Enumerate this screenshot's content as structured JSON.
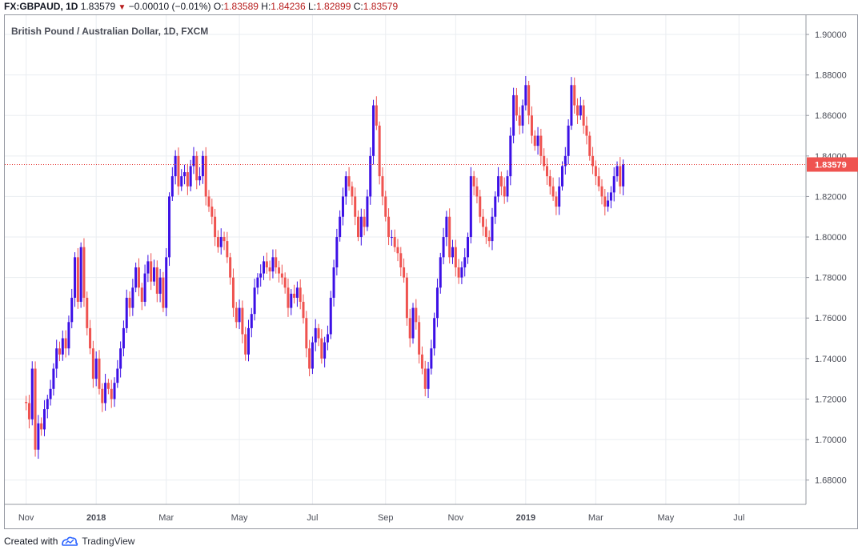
{
  "header": {
    "symbol": "FX:GBPAUD, 1D",
    "last": "1.83579",
    "change": "−0.00010 (−0.01%)",
    "o_label": "O:",
    "o_value": "1.83589",
    "h_label": "H:",
    "h_value": "1.84236",
    "l_label": "L:",
    "l_value": "1.82899",
    "c_label": "C:",
    "c_value": "1.83579"
  },
  "footer": {
    "created_with": "Created with",
    "brand": "TradingView"
  },
  "colors": {
    "up": "#3c10e6",
    "down": "#ef5350",
    "price_line": "#e53935",
    "price_label_bg": "#ef5350",
    "grid": "#eaedf1",
    "axis_text": "#4a4d57",
    "brand": "#2962ff"
  },
  "chart_data": {
    "type": "candlestick",
    "title": "British Pound / Australian Dollar, 1D, FXCM",
    "symbol": "FX:GBPAUD",
    "interval": "1D",
    "last_price": 1.83579,
    "last_price_label": "1.83579",
    "ylim": [
      1.668,
      1.9095
    ],
    "x_range_days": [
      -7,
      256
    ],
    "y_ticks": [
      1.68,
      1.7,
      1.72,
      1.74,
      1.76,
      1.78,
      1.8,
      1.82,
      1.84,
      1.86,
      1.88,
      1.9
    ],
    "y_tick_labels": [
      "1.68000",
      "1.70000",
      "1.72000",
      "1.74000",
      "1.76000",
      "1.78000",
      "1.80000",
      "1.82000",
      "1.84000",
      "1.86000",
      "1.88000",
      "1.90000"
    ],
    "x_ticks": [
      {
        "label": "Nov",
        "day": 0
      },
      {
        "label": "2018",
        "day": 23
      },
      {
        "label": "Mar",
        "day": 46
      },
      {
        "label": "May",
        "day": 70
      },
      {
        "label": "Jul",
        "day": 94
      },
      {
        "label": "Sep",
        "day": 118
      },
      {
        "label": "Nov",
        "day": 141
      },
      {
        "label": "2019",
        "day": 164
      },
      {
        "label": "Mar",
        "day": 187
      },
      {
        "label": "May",
        "day": 210
      },
      {
        "label": "Jul",
        "day": 234
      }
    ],
    "start_close": 1.7186,
    "closes": [
      1.718,
      1.71,
      1.735,
      1.695,
      1.708,
      1.705,
      1.715,
      1.72,
      1.725,
      1.735,
      1.745,
      1.742,
      1.75,
      1.745,
      1.758,
      1.77,
      1.79,
      1.768,
      1.795,
      1.77,
      1.755,
      1.745,
      1.73,
      1.74,
      1.725,
      1.718,
      1.728,
      1.725,
      1.72,
      1.728,
      1.735,
      1.745,
      1.755,
      1.77,
      1.765,
      1.775,
      1.785,
      1.775,
      1.768,
      1.782,
      1.788,
      1.778,
      1.785,
      1.772,
      1.78,
      1.765,
      1.79,
      1.82,
      1.83,
      1.84,
      1.825,
      1.83,
      1.832,
      1.825,
      1.835,
      1.84,
      1.828,
      1.83,
      1.84,
      1.82,
      1.815,
      1.81,
      1.8,
      1.795,
      1.8,
      1.798,
      1.79,
      1.78,
      1.765,
      1.758,
      1.765,
      1.752,
      1.742,
      1.755,
      1.762,
      1.775,
      1.78,
      1.782,
      1.788,
      1.785,
      1.783,
      1.79,
      1.785,
      1.782,
      1.78,
      1.775,
      1.765,
      1.772,
      1.77,
      1.775,
      1.768,
      1.76,
      1.745,
      1.735,
      1.748,
      1.755,
      1.75,
      1.74,
      1.748,
      1.752,
      1.77,
      1.785,
      1.8,
      1.81,
      1.82,
      1.83,
      1.825,
      1.82,
      1.81,
      1.8,
      1.81,
      1.805,
      1.82,
      1.84,
      1.865,
      1.855,
      1.83,
      1.82,
      1.81,
      1.8,
      1.8,
      1.795,
      1.792,
      1.785,
      1.78,
      1.76,
      1.75,
      1.765,
      1.758,
      1.742,
      1.735,
      1.725,
      1.735,
      1.745,
      1.76,
      1.775,
      1.79,
      1.8,
      1.81,
      1.79,
      1.795,
      1.785,
      1.78,
      1.785,
      1.79,
      1.8,
      1.83,
      1.825,
      1.82,
      1.81,
      1.805,
      1.8,
      1.798,
      1.81,
      1.82,
      1.83,
      1.825,
      1.82,
      1.83,
      1.85,
      1.87,
      1.86,
      1.855,
      1.865,
      1.875,
      1.86,
      1.85,
      1.845,
      1.85,
      1.84,
      1.835,
      1.83,
      1.825,
      1.82,
      1.815,
      1.825,
      1.835,
      1.84,
      1.855,
      1.875,
      1.865,
      1.86,
      1.865,
      1.855,
      1.85,
      1.84,
      1.835,
      1.83,
      1.825,
      1.82,
      1.815,
      1.818,
      1.822,
      1.83,
      1.835,
      1.825,
      1.8358
    ]
  }
}
